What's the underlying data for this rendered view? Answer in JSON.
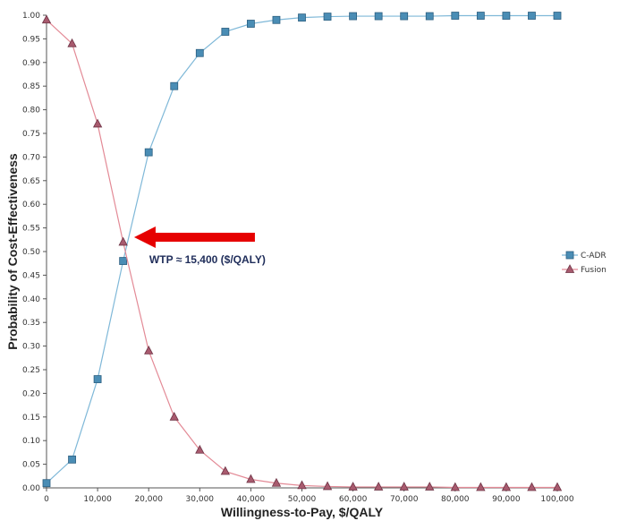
{
  "chart_data": {
    "type": "line",
    "title": "",
    "xlabel": "Willingness-to-Pay, $/QALY",
    "ylabel": "Probability of Cost-Effectiveness",
    "xlim": [
      0,
      100000
    ],
    "ylim": [
      0,
      1
    ],
    "x": [
      0,
      5000,
      10000,
      15000,
      20000,
      25000,
      30000,
      35000,
      40000,
      45000,
      50000,
      55000,
      60000,
      65000,
      70000,
      75000,
      80000,
      85000,
      90000,
      95000,
      100000
    ],
    "x_tick_labels": [
      "0",
      "10,000",
      "20,000",
      "30,000",
      "40,000",
      "50,000",
      "60,000",
      "70,000",
      "80,000",
      "90,000",
      "100,000"
    ],
    "y_tick_labels": [
      "0.00",
      "0.05",
      "0.10",
      "0.15",
      "0.20",
      "0.25",
      "0.30",
      "0.35",
      "0.40",
      "0.45",
      "0.50",
      "0.55",
      "0.60",
      "0.65",
      "0.70",
      "0.75",
      "0.80",
      "0.85",
      "0.90",
      "0.95",
      "1.00"
    ],
    "series": [
      {
        "name": "C-ADR",
        "marker": "square",
        "line_color": "#7fb8d8",
        "marker_color": "#4a8db5",
        "values": [
          0.01,
          0.06,
          0.23,
          0.48,
          0.71,
          0.85,
          0.92,
          0.965,
          0.982,
          0.99,
          0.995,
          0.997,
          0.998,
          0.998,
          0.998,
          0.998,
          0.999,
          0.999,
          0.999,
          0.999,
          0.999
        ]
      },
      {
        "name": "Fusion",
        "marker": "triangle",
        "line_color": "#e38a96",
        "marker_color": "#a85a6e",
        "values": [
          0.99,
          0.94,
          0.77,
          0.52,
          0.29,
          0.15,
          0.08,
          0.035,
          0.018,
          0.01,
          0.005,
          0.003,
          0.002,
          0.002,
          0.002,
          0.002,
          0.001,
          0.001,
          0.001,
          0.001,
          0.001
        ]
      }
    ],
    "grid": false,
    "legend_position": "right",
    "annotation": {
      "text": "WTP ≈ 15,400 ($/QALY)",
      "arrow_color": "#e60000",
      "points_to_x": 15400,
      "points_to_y": 0.5
    }
  }
}
